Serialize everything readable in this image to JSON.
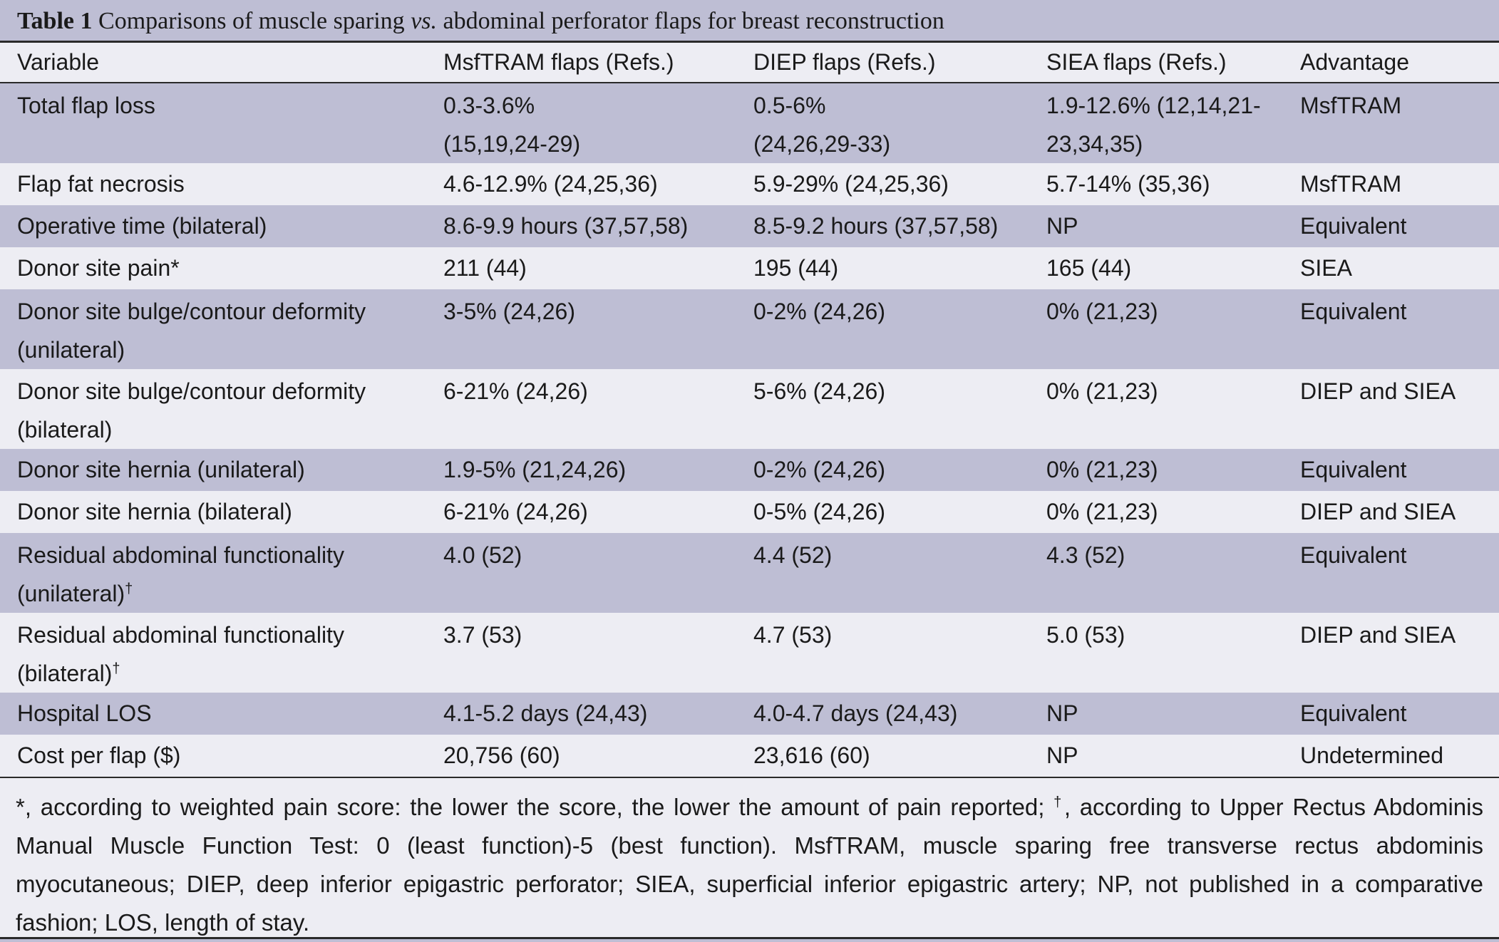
{
  "table": {
    "title_lead": "Table 1",
    "title_pre": "Comparisons of muscle sparing",
    "title_vs": "vs.",
    "title_post": "abdominal perforator flaps for breast reconstruction",
    "headers": [
      "Variable",
      "MsfTRAM flaps (Refs.)",
      "DIEP flaps (Refs.)",
      "SIEA flaps (Refs.)",
      "Advantage"
    ],
    "rows": [
      [
        "Total flap loss",
        "0.3-3.6% (15,19,24-29)",
        "0.5-6% (24,26,29-33)",
        "1.9-12.6% (12,14,21-23,34,35)",
        "MsfTRAM"
      ],
      [
        "Flap fat necrosis",
        "4.6-12.9% (24,25,36)",
        "5.9-29% (24,25,36)",
        "5.7-14% (35,36)",
        "MsfTRAM"
      ],
      [
        "Operative time (bilateral)",
        "8.6-9.9 hours (37,57,58)",
        "8.5-9.2 hours (37,57,58)",
        "NP",
        "Equivalent"
      ],
      [
        "Donor site pain*",
        "211 (44)",
        "195 (44)",
        "165 (44)",
        "SIEA"
      ],
      [
        "Donor site bulge/contour deformity (unilateral)",
        "3-5% (24,26)",
        "0-2% (24,26)",
        "0% (21,23)",
        "Equivalent"
      ],
      [
        "Donor site bulge/contour deformity (bilateral)",
        "6-21% (24,26)",
        "5-6% (24,26)",
        "0% (21,23)",
        "DIEP and SIEA"
      ],
      [
        "Donor site hernia (unilateral)",
        "1.9-5% (21,24,26)",
        "0-2% (24,26)",
        "0% (21,23)",
        "Equivalent"
      ],
      [
        "Donor site hernia (bilateral)",
        "6-21% (24,26)",
        "0-5% (24,26)",
        "0% (21,23)",
        "DIEP and SIEA"
      ],
      [
        "Residual abdominal functionality (unilateral)",
        "4.0 (52)",
        "4.4 (52)",
        "4.3 (52)",
        "Equivalent"
      ],
      [
        "Residual abdominal functionality (bilateral)",
        "3.7 (53)",
        "4.7 (53)",
        "5.0 (53)",
        "DIEP and SIEA"
      ],
      [
        "Hospital LOS",
        "4.1-5.2 days (24,43)",
        "4.0-4.7 days (24,43)",
        "NP",
        "Equivalent"
      ],
      [
        "Cost per flap ($)",
        "20,756 (60)",
        "23,616 (60)",
        "NP",
        "Undetermined"
      ]
    ],
    "split_cells": {
      "r0c1": [
        "0.3-3.6%",
        "(15,19,24-29)"
      ],
      "r0c2": [
        "0.5-6%",
        "(24,26,29-33)"
      ],
      "r0c3": [
        "1.9-12.6% (12,14,21-",
        "23,34,35)"
      ],
      "r4c0": [
        "Donor site bulge/contour deformity",
        "(unilateral)"
      ],
      "r5c0": [
        "Donor site bulge/contour deformity",
        "(bilateral)"
      ],
      "r8c0": [
        "Residual abdominal functionality",
        "(unilateral)"
      ],
      "r9c0": [
        "Residual abdominal functionality",
        "(bilateral)"
      ]
    },
    "dagger": "†",
    "footnote": {
      "star": "*, according to weighted pain score: the lower the score, the lower the amount of pain reported; ",
      "dagger": "†",
      "rest": ", according to Upper Rectus Abdominis Manual Muscle Function Test: 0 (least function)-5 (best function). MsfTRAM, muscle sparing free transverse rectus abdominis myocutaneous; DIEP, deep inferior epigastric perforator; SIEA, superficial inferior epigastric artery; NP, not published in a comparative fashion; LOS, length of stay."
    }
  },
  "colors": {
    "shaded_row": "#bebed4",
    "light_row": "#ededf3",
    "rule": "#2a2a2a"
  }
}
